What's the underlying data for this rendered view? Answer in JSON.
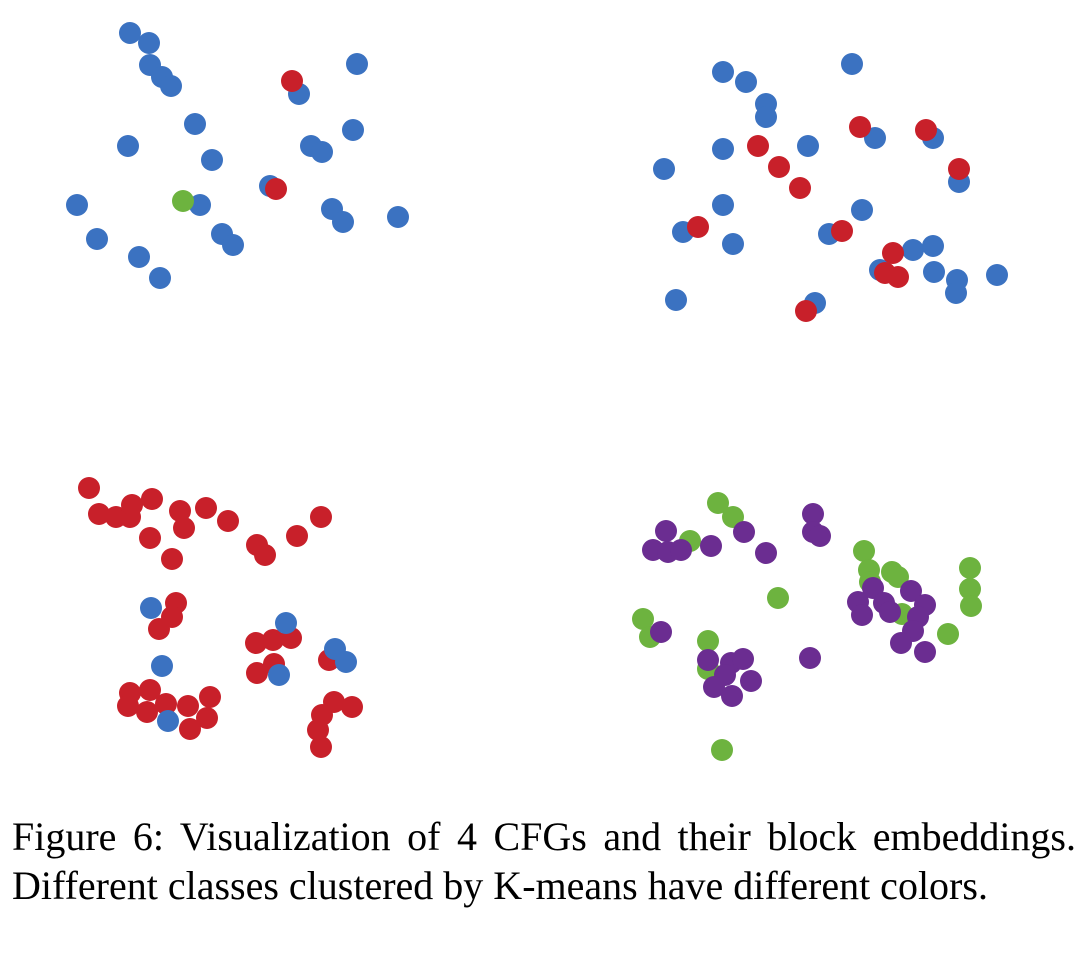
{
  "chart_data": [
    {
      "type": "scatter",
      "xlim": [
        0,
        540
      ],
      "ylim": [
        390,
        0
      ],
      "series": [
        {
          "color": "#3b72c1",
          "x": [
            130,
            149,
            150,
            162,
            171,
            357,
            299,
            195,
            128,
            212,
            353,
            311,
            322,
            270,
            200,
            77,
            332,
            343,
            398,
            222,
            233,
            97,
            139,
            160
          ],
          "y": [
            33,
            43,
            65,
            77,
            86,
            64,
            94,
            124,
            146,
            160,
            130,
            146,
            152,
            186,
            205,
            205,
            209,
            222,
            217,
            234,
            245,
            239,
            257,
            278
          ]
        },
        {
          "color": "#c8202a",
          "x": [
            292,
            276
          ],
          "y": [
            81,
            189
          ]
        },
        {
          "color": "#6db33f",
          "x": [
            183
          ],
          "y": [
            201
          ]
        }
      ]
    },
    {
      "type": "scatter",
      "xlim": [
        0,
        540
      ],
      "ylim": [
        390,
        0
      ],
      "series": [
        {
          "color": "#3b72c1",
          "x": [
            178,
            201,
            221,
            221,
            307,
            330,
            388,
            178,
            263,
            119,
            414,
            178,
            317,
            138,
            188,
            284,
            368,
            388,
            335,
            389,
            412,
            411,
            452,
            131,
            270
          ],
          "y": [
            72,
            82,
            104,
            117,
            64,
            138,
            138,
            149,
            146,
            169,
            182,
            205,
            210,
            232,
            244,
            234,
            250,
            246,
            270,
            272,
            280,
            293,
            275,
            300,
            303
          ]
        },
        {
          "color": "#c8202a",
          "x": [
            315,
            381,
            213,
            234,
            255,
            414,
            153,
            297,
            348,
            340,
            353,
            261
          ],
          "y": [
            127,
            130,
            146,
            167,
            188,
            169,
            227,
            231,
            253,
            273,
            277,
            311
          ]
        }
      ]
    },
    {
      "type": "scatter",
      "xlim": [
        0,
        540
      ],
      "ylim": [
        390,
        0
      ],
      "series": [
        {
          "color": "#c8202a",
          "x": [
            89,
            99,
            116,
            130,
            132,
            152,
            150,
            180,
            184,
            206,
            228,
            172,
            257,
            265,
            297,
            321,
            176,
            172,
            159,
            256,
            273,
            291,
            274,
            257,
            329,
            130,
            150,
            128,
            147,
            166,
            188,
            210,
            207,
            190,
            334,
            352,
            322,
            318,
            321
          ],
          "y": [
            98,
            124,
            127,
            127,
            115,
            109,
            148,
            121,
            138,
            118,
            131,
            169,
            155,
            165,
            146,
            127,
            213,
            227,
            239,
            253,
            250,
            248,
            274,
            283,
            270,
            303,
            300,
            316,
            322,
            314,
            316,
            307,
            328,
            339,
            312,
            317,
            325,
            340,
            357
          ]
        },
        {
          "color": "#3b72c1",
          "x": [
            151,
            286,
            335,
            346,
            162,
            279,
            168
          ],
          "y": [
            218,
            233,
            259,
            272,
            276,
            285,
            331
          ]
        }
      ]
    },
    {
      "type": "scatter",
      "xlim": [
        0,
        540
      ],
      "ylim": [
        390,
        0
      ],
      "series": [
        {
          "color": "#6db33f",
          "x": [
            173,
            188,
            145,
            319,
            324,
            347,
            353,
            425,
            425,
            426,
            233,
            325,
            357,
            98,
            105,
            163,
            163,
            403,
            177
          ],
          "y": [
            113,
            127,
            151,
            161,
            180,
            182,
            187,
            178,
            199,
            216,
            208,
            192,
            224,
            229,
            247,
            251,
            279,
            244,
            360
          ]
        },
        {
          "color": "#6b2d91",
          "x": [
            268,
            268,
            275,
            121,
            108,
            123,
            136,
            166,
            199,
            221,
            313,
            328,
            339,
            317,
            366,
            380,
            373,
            345,
            368,
            356,
            380,
            116,
            163,
            186,
            198,
            180,
            206,
            169,
            187,
            265
          ],
          "y": [
            124,
            142,
            146,
            141,
            160,
            162,
            160,
            156,
            142,
            163,
            212,
            198,
            213,
            225,
            201,
            215,
            227,
            222,
            241,
            253,
            262,
            242,
            270,
            273,
            269,
            285,
            291,
            297,
            306,
            268
          ]
        }
      ]
    }
  ],
  "caption": "Figure 6: Visualization of 4 CFGs and their block embeddings. Different classes clustered by K-means have different colors."
}
